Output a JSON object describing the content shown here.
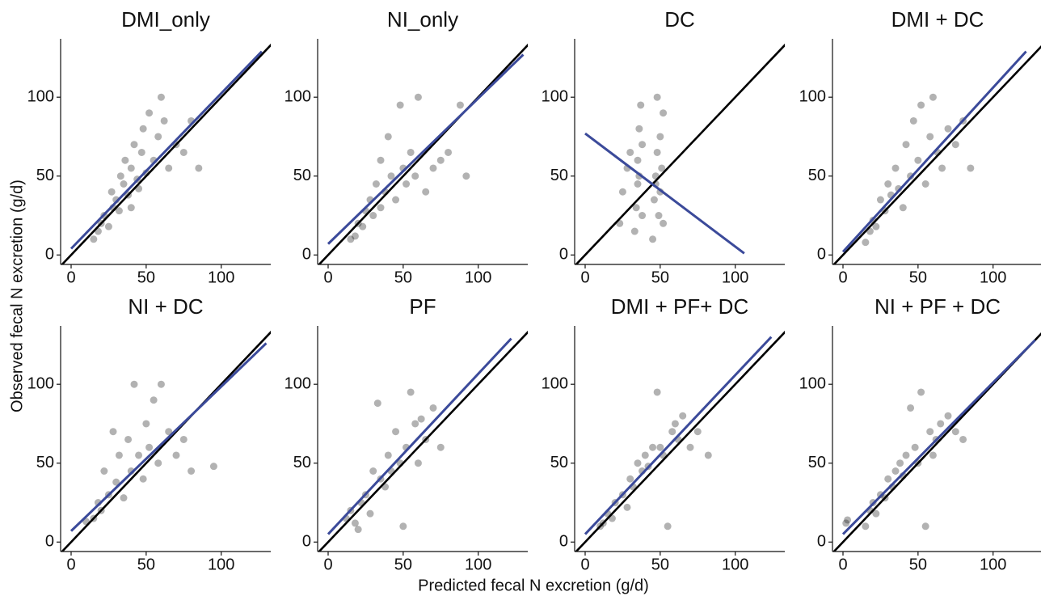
{
  "x_label": "Predicted fecal N excretion (g/d)",
  "y_label": "Observed fecal N excretion (g/d)",
  "chart_data": [
    {
      "type": "scatter",
      "title": "DMI_only",
      "xlim": [
        -7,
        133
      ],
      "ylim": [
        -6,
        137
      ],
      "xticks": [
        0,
        50,
        100
      ],
      "yticks": [
        0,
        50,
        100
      ],
      "x": [
        15,
        18,
        20,
        22,
        25,
        27,
        28,
        30,
        32,
        33,
        35,
        36,
        38,
        40,
        40,
        42,
        44,
        45,
        47,
        48,
        50,
        52,
        55,
        58,
        60,
        62,
        65,
        70,
        75,
        80,
        85
      ],
      "y": [
        10,
        15,
        20,
        25,
        18,
        40,
        30,
        35,
        28,
        50,
        45,
        60,
        38,
        30,
        55,
        70,
        48,
        42,
        65,
        80,
        52,
        90,
        60,
        75,
        100,
        85,
        55,
        70,
        65,
        85,
        55
      ],
      "fit_x": [
        0,
        127
      ],
      "fit_y": [
        4,
        129
      ],
      "color": "#000000",
      "fit_color": "#3b4a9a"
    },
    {
      "type": "scatter",
      "title": "NI_only",
      "xlim": [
        -7,
        133
      ],
      "ylim": [
        -6,
        137
      ],
      "xticks": [
        0,
        50,
        100
      ],
      "yticks": [
        0,
        50,
        100
      ],
      "x": [
        15,
        18,
        20,
        23,
        25,
        28,
        30,
        32,
        35,
        35,
        38,
        40,
        42,
        45,
        48,
        50,
        52,
        55,
        58,
        60,
        65,
        70,
        75,
        80,
        88,
        92
      ],
      "y": [
        10,
        12,
        20,
        18,
        28,
        35,
        25,
        45,
        30,
        60,
        40,
        75,
        50,
        35,
        95,
        55,
        45,
        65,
        50,
        100,
        40,
        55,
        60,
        65,
        95,
        50
      ],
      "fit_x": [
        0,
        130
      ],
      "fit_y": [
        7,
        127
      ],
      "color": "#000000",
      "fit_color": "#3b4a9a"
    },
    {
      "type": "scatter",
      "title": "DC",
      "xlim": [
        -7,
        133
      ],
      "ylim": [
        -6,
        137
      ],
      "xticks": [
        0,
        50,
        100
      ],
      "yticks": [
        0,
        50,
        100
      ],
      "x": [
        23,
        25,
        28,
        30,
        33,
        34,
        35,
        35,
        36,
        37,
        38,
        38,
        45,
        46,
        47,
        48,
        48,
        49,
        50,
        50,
        51,
        52,
        52,
        36,
        47
      ],
      "y": [
        20,
        40,
        55,
        65,
        15,
        30,
        45,
        60,
        80,
        95,
        25,
        70,
        10,
        35,
        50,
        65,
        100,
        25,
        40,
        75,
        55,
        20,
        90,
        50,
        45
      ],
      "fit_x": [
        0,
        106
      ],
      "fit_y": [
        77,
        1
      ],
      "color": "#000000",
      "fit_color": "#3b4a9a"
    },
    {
      "type": "scatter",
      "title": "DMI + DC",
      "xlim": [
        -7,
        133
      ],
      "ylim": [
        -6,
        137
      ],
      "xticks": [
        0,
        50,
        100
      ],
      "yticks": [
        0,
        50,
        100
      ],
      "x": [
        15,
        18,
        20,
        22,
        25,
        28,
        30,
        32,
        35,
        37,
        40,
        42,
        45,
        47,
        50,
        52,
        55,
        58,
        60,
        63,
        66,
        70,
        75,
        80,
        85
      ],
      "y": [
        8,
        15,
        22,
        18,
        35,
        28,
        45,
        38,
        55,
        42,
        30,
        70,
        50,
        85,
        60,
        95,
        45,
        75,
        100,
        65,
        55,
        80,
        70,
        85,
        55
      ],
      "fit_x": [
        0,
        122
      ],
      "fit_y": [
        2,
        129
      ],
      "color": "#000000",
      "fit_color": "#3b4a9a"
    },
    {
      "type": "scatter",
      "title": "NI + DC",
      "xlim": [
        -7,
        133
      ],
      "ylim": [
        -6,
        137
      ],
      "xticks": [
        0,
        50,
        100
      ],
      "yticks": [
        0,
        50,
        100
      ],
      "x": [
        10,
        15,
        18,
        20,
        22,
        25,
        28,
        30,
        32,
        35,
        38,
        40,
        42,
        45,
        48,
        50,
        52,
        55,
        58,
        60,
        65,
        70,
        75,
        80,
        95
      ],
      "y": [
        13,
        15,
        25,
        20,
        45,
        30,
        70,
        38,
        55,
        28,
        65,
        45,
        100,
        55,
        40,
        75,
        60,
        90,
        50,
        100,
        70,
        55,
        65,
        45,
        48
      ],
      "fit_x": [
        0,
        130
      ],
      "fit_y": [
        7,
        126
      ],
      "color": "#000000",
      "fit_color": "#3b4a9a"
    },
    {
      "type": "scatter",
      "title": "PF",
      "xlim": [
        -7,
        133
      ],
      "ylim": [
        -6,
        137
      ],
      "xticks": [
        0,
        50,
        100
      ],
      "yticks": [
        0,
        50,
        100
      ],
      "x": [
        12,
        15,
        18,
        20,
        22,
        25,
        28,
        30,
        33,
        35,
        38,
        40,
        42,
        45,
        48,
        50,
        52,
        55,
        58,
        60,
        62,
        65,
        70,
        75
      ],
      "y": [
        15,
        20,
        12,
        8,
        25,
        30,
        18,
        45,
        88,
        40,
        35,
        55,
        45,
        70,
        50,
        10,
        60,
        95,
        75,
        50,
        78,
        65,
        85,
        60
      ],
      "fit_x": [
        0,
        122
      ],
      "fit_y": [
        5,
        129
      ],
      "color": "#000000",
      "fit_color": "#3b4a9a"
    },
    {
      "type": "scatter",
      "title": "DMI + PF+ DC",
      "xlim": [
        -7,
        133
      ],
      "ylim": [
        -6,
        137
      ],
      "xticks": [
        0,
        50,
        100
      ],
      "yticks": [
        0,
        50,
        100
      ],
      "x": [
        10,
        12,
        15,
        18,
        20,
        25,
        28,
        30,
        32,
        35,
        38,
        40,
        42,
        45,
        48,
        50,
        52,
        55,
        58,
        60,
        62,
        65,
        70,
        75,
        82
      ],
      "y": [
        10,
        12,
        18,
        15,
        25,
        30,
        22,
        40,
        35,
        50,
        45,
        55,
        48,
        60,
        95,
        60,
        55,
        10,
        70,
        75,
        65,
        80,
        60,
        70,
        55
      ],
      "fit_x": [
        0,
        124
      ],
      "fit_y": [
        5,
        130
      ],
      "color": "#000000",
      "fit_color": "#3b4a9a"
    },
    {
      "type": "scatter",
      "title": "NI + PF + DC",
      "xlim": [
        -7,
        133
      ],
      "ylim": [
        -6,
        137
      ],
      "xticks": [
        0,
        50,
        100
      ],
      "yticks": [
        0,
        50,
        100
      ],
      "x": [
        2,
        3,
        15,
        18,
        20,
        22,
        25,
        28,
        30,
        33,
        35,
        38,
        40,
        42,
        45,
        48,
        50,
        52,
        55,
        58,
        60,
        62,
        65,
        70,
        75,
        80
      ],
      "y": [
        12,
        14,
        10,
        20,
        25,
        18,
        30,
        28,
        40,
        35,
        45,
        50,
        42,
        55,
        85,
        60,
        50,
        95,
        10,
        70,
        55,
        65,
        75,
        80,
        70,
        65
      ],
      "fit_x": [
        0,
        128
      ],
      "fit_y": [
        5,
        128
      ],
      "color": "#000000",
      "fit_color": "#3b4a9a"
    }
  ]
}
